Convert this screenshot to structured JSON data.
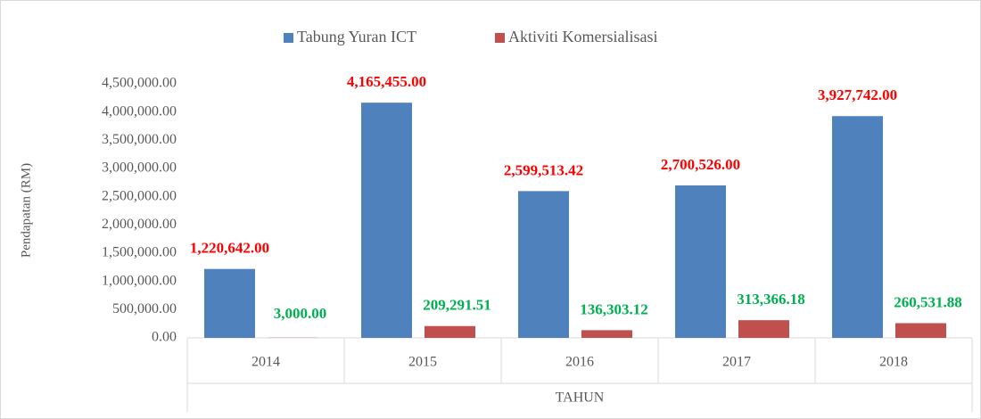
{
  "chart_data": {
    "type": "bar",
    "xlabel": "TAHUN",
    "ylabel": "Pendapatan (RM)",
    "categories": [
      "2014",
      "2015",
      "2016",
      "2017",
      "2018"
    ],
    "series": [
      {
        "name": "Tabung Yuran ICT",
        "color": "#4f81bd",
        "label_color": "#ff0000",
        "values": [
          1220642.0,
          4165455.0,
          2599513.42,
          2700526.0,
          3927742.0
        ],
        "value_labels": [
          "1,220,642.00",
          "4,165,455.00",
          "2,599,513.42",
          "2,700,526.00",
          "3,927,742.00"
        ]
      },
      {
        "name": "Aktiviti Komersialisasi",
        "color": "#c0504d",
        "label_color": "#00b050",
        "values": [
          3000.0,
          209291.51,
          136303.12,
          313366.18,
          260531.88
        ],
        "value_labels": [
          "3,000.00",
          "209,291.51",
          "136,303.12",
          "313,366.18",
          "260,531.88"
        ]
      }
    ],
    "ylim": [
      0,
      4500000
    ],
    "yticks": [
      {
        "value": 0,
        "label": "0.00"
      },
      {
        "value": 500000,
        "label": "500,000.00"
      },
      {
        "value": 1000000,
        "label": "1,000,000.00"
      },
      {
        "value": 1500000,
        "label": "1,500,000.00"
      },
      {
        "value": 2000000,
        "label": "2,000,000.00"
      },
      {
        "value": 2500000,
        "label": "2,500,000.00"
      },
      {
        "value": 3000000,
        "label": "3,000,000.00"
      },
      {
        "value": 3500000,
        "label": "3,500,000.00"
      },
      {
        "value": 4000000,
        "label": "4,000,000.00"
      },
      {
        "value": 4500000,
        "label": "4,500,000.00"
      }
    ],
    "grid": false,
    "legend": "top"
  }
}
